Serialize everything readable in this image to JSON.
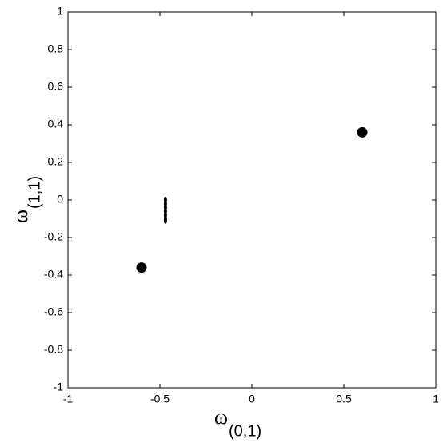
{
  "chart_data": {
    "type": "scatter",
    "xlabel": {
      "text": "ω",
      "subscript": "(0,1)"
    },
    "ylabel": {
      "text": "ω",
      "subscript": "(1,1)"
    },
    "series": [
      {
        "color": "#000000",
        "x": [
          0.6,
          -0.6
        ],
        "y": [
          0.36,
          -0.36
        ]
      },
      {
        "color": "#000000",
        "x": [
          -0.47,
          -0.47,
          -0.47,
          -0.47,
          -0.47,
          -0.47,
          -0.47
        ],
        "y": [
          0.0,
          -0.02,
          -0.04,
          -0.06,
          -0.08,
          -0.1,
          -0.11
        ]
      }
    ],
    "xlim": [
      -1,
      1
    ],
    "xticks": [
      -1,
      -0.5,
      0,
      0.5,
      1
    ],
    "ylim": [
      -1,
      1
    ],
    "yticks": [
      -1,
      -0.8,
      -0.6,
      -0.4,
      -0.2,
      0,
      0.2,
      0.4,
      0.6,
      0.8,
      1
    ],
    "grid": false
  }
}
